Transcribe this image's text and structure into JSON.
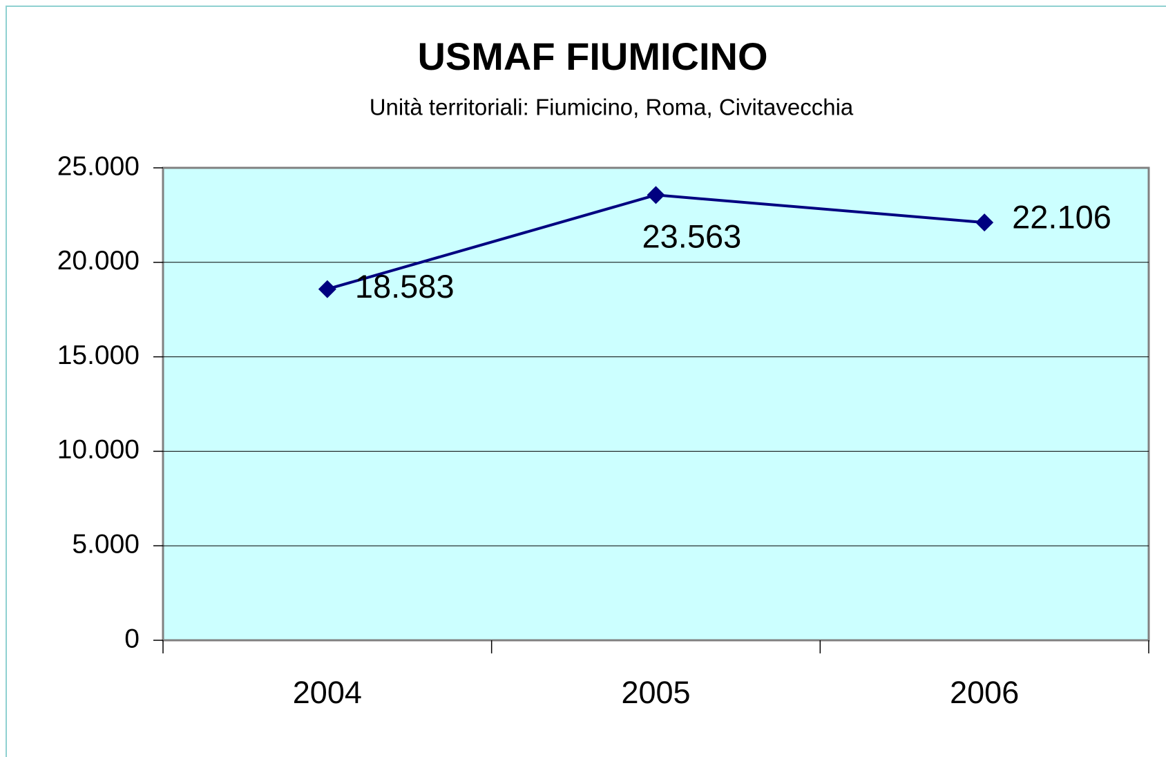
{
  "chart_data": {
    "type": "line",
    "title": "USMAF FIUMICINO",
    "subtitle": "Unità territoriali: Fiumicino, Roma, Civitavecchia",
    "categories": [
      "2004",
      "2005",
      "2006"
    ],
    "series": [
      {
        "name": "USMAF FIUMICINO",
        "color": "#000080",
        "values": [
          18583,
          23563,
          22106
        ],
        "value_labels": [
          "18.583",
          "23.563",
          "22.106"
        ]
      }
    ],
    "ylim": [
      0,
      25000
    ],
    "yticks": [
      0,
      {
        "value": 5000,
        "label": "5.000"
      },
      {
        "value": 10000,
        "label": "10.000"
      },
      {
        "value": 15000,
        "label": "15.000"
      },
      {
        "value": 20000,
        "label": "20.000"
      },
      {
        "value": 25000,
        "label": "25.000"
      }
    ],
    "grid": true,
    "plot_background": "#ccffff"
  }
}
